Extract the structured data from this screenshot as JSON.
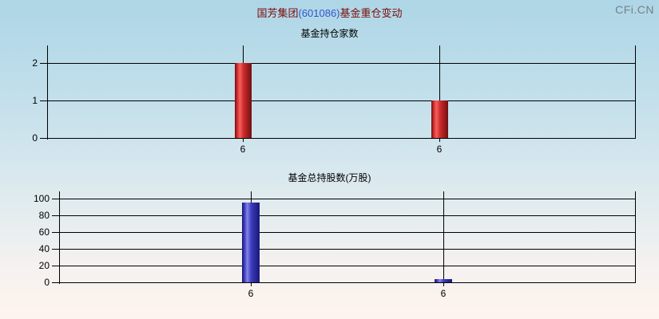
{
  "header": {
    "title_prefix": "国芳集团",
    "title_code": "(601086)",
    "title_suffix": "基金重仓变动",
    "watermark": "CFi.CN"
  },
  "colors": {
    "title_text": "#7a0b0b",
    "title_code": "#2f55cc",
    "axis": "#000000",
    "watermark": "#75808a",
    "red_bar": {
      "dark": "#701010",
      "mid": "#cf2b2b",
      "light": "#f4605f"
    },
    "blue_bar": {
      "dark": "#17177a",
      "mid": "#3d3dbb",
      "light": "#8585ea"
    },
    "bg_top": "#aed6e6",
    "bg_bottom": "#fdf4ee"
  },
  "chart_data": [
    {
      "type": "bar",
      "title": "基金持仓家数",
      "categories": [
        "6",
        "6"
      ],
      "values": [
        2,
        1
      ],
      "ylim": [
        0,
        2
      ],
      "yticks": [
        0,
        1,
        2
      ],
      "bar_color": "red",
      "grid": true,
      "legend_position": "none"
    },
    {
      "type": "bar",
      "title": "基金总持股数(万股)",
      "categories": [
        "6",
        "6"
      ],
      "values": [
        95,
        4
      ],
      "ylim": [
        0,
        100
      ],
      "yticks": [
        0,
        20,
        40,
        60,
        80,
        100
      ],
      "bar_color": "blue",
      "grid": true,
      "legend_position": "none"
    }
  ]
}
